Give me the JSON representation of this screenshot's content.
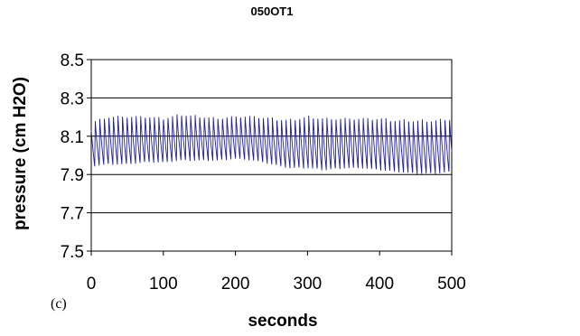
{
  "chart_data": {
    "type": "line",
    "title": "050OT1",
    "xlabel": "seconds",
    "ylabel": "pressure  (cm  H2O)",
    "panel_label": "(c)",
    "xlim": [
      0,
      500
    ],
    "ylim": [
      7.5,
      8.5
    ],
    "xticks": [
      0,
      100,
      200,
      300,
      400,
      500
    ],
    "yticks": [
      7.5,
      7.7,
      7.9,
      8.1,
      8.3,
      8.5
    ],
    "ytick_labels": [
      "7.5",
      "7.7",
      "7.9",
      "8.1",
      "8.3",
      "8.5"
    ],
    "grid": "horizontal",
    "legend": "none",
    "line_color": "#1f1f99",
    "series": [
      {
        "oscillation_period_s": 6.3,
        "x": [
          0,
          25,
          50,
          75,
          100,
          125,
          150,
          175,
          200,
          225,
          250,
          275,
          300,
          325,
          350,
          375,
          400,
          425,
          450,
          475,
          500
        ],
        "y_max": [
          8.18,
          8.21,
          8.21,
          8.21,
          8.2,
          8.22,
          8.21,
          8.2,
          8.21,
          8.21,
          8.2,
          8.19,
          8.21,
          8.2,
          8.2,
          8.2,
          8.2,
          8.19,
          8.19,
          8.19,
          8.2
        ],
        "y_min": [
          7.94,
          7.95,
          7.95,
          7.96,
          7.96,
          7.97,
          7.97,
          7.97,
          7.98,
          7.97,
          7.95,
          7.93,
          7.93,
          7.92,
          7.93,
          7.93,
          7.92,
          7.91,
          7.9,
          7.9,
          7.91
        ]
      }
    ]
  }
}
